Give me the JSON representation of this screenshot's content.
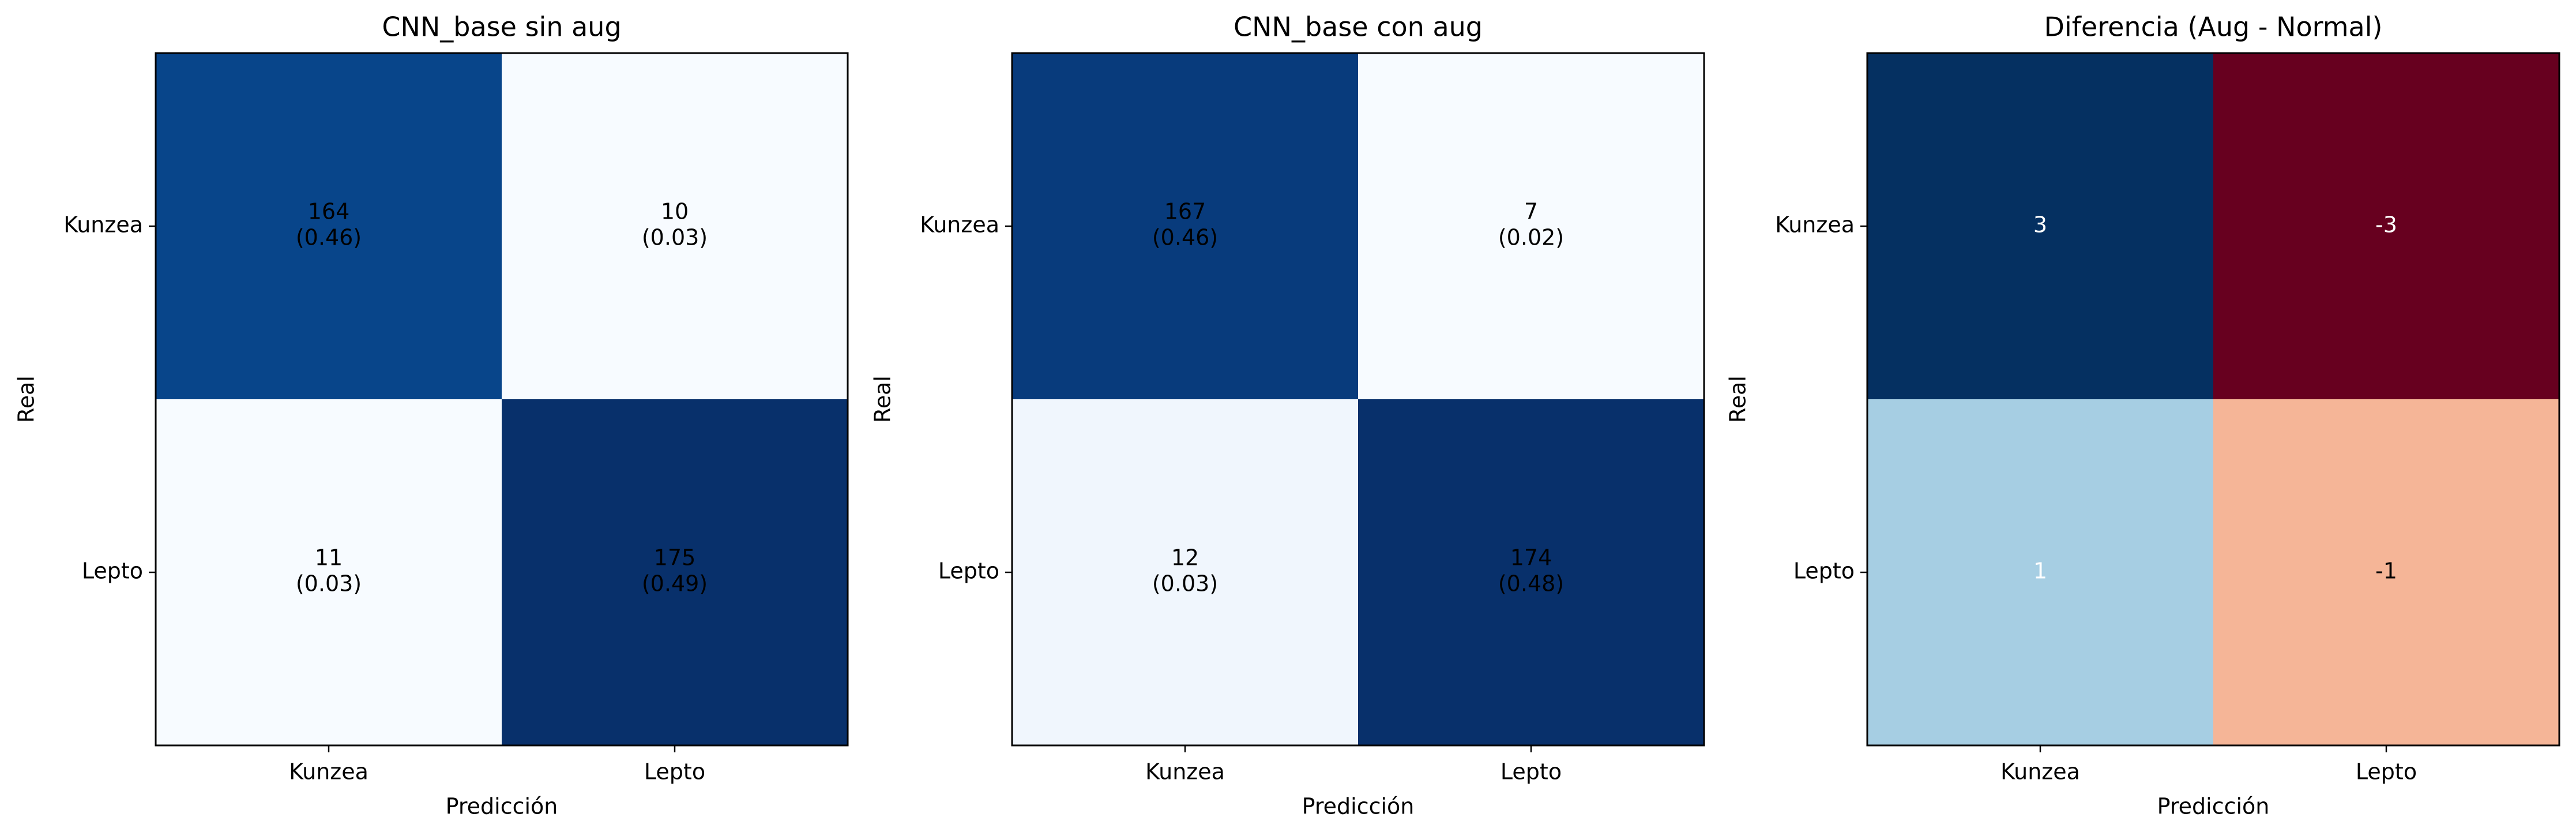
{
  "chart_data": [
    {
      "type": "heatmap",
      "title": "CNN_base sin aug",
      "xlabel": "Predicción",
      "ylabel": "Real",
      "x_categories": [
        "Kunzea",
        "Lepto"
      ],
      "y_categories": [
        "Kunzea",
        "Lepto"
      ],
      "colormap": "Blues",
      "counts": [
        [
          164,
          10
        ],
        [
          11,
          175
        ]
      ],
      "fractions": [
        "(0.46)",
        "(0.03)",
        "(0.03)",
        "(0.49)"
      ],
      "cell_colors": [
        [
          "#08458a",
          "#f7fbff"
        ],
        [
          "#f7fbff",
          "#08306b"
        ]
      ],
      "text_color": "#000000"
    },
    {
      "type": "heatmap",
      "title": "CNN_base con aug",
      "xlabel": "Predicción",
      "ylabel": "Real",
      "x_categories": [
        "Kunzea",
        "Lepto"
      ],
      "y_categories": [
        "Kunzea",
        "Lepto"
      ],
      "colormap": "Blues",
      "counts": [
        [
          167,
          7
        ],
        [
          12,
          174
        ]
      ],
      "fractions": [
        "(0.46)",
        "(0.02)",
        "(0.03)",
        "(0.48)"
      ],
      "cell_colors": [
        [
          "#083b7c",
          "#f7fbff"
        ],
        [
          "#f0f6fd",
          "#08306b"
        ]
      ],
      "text_color": "#000000"
    },
    {
      "type": "heatmap",
      "title": "Diferencia (Aug - Normal)",
      "xlabel": "Predicción",
      "ylabel": "Real",
      "x_categories": [
        "Kunzea",
        "Lepto"
      ],
      "y_categories": [
        "Kunzea",
        "Lepto"
      ],
      "colormap": "RdBu",
      "values": [
        [
          3,
          -3
        ],
        [
          1,
          -1
        ]
      ],
      "cell_colors": [
        [
          "#053061",
          "#67001f"
        ],
        [
          "#a6cee3",
          "#f5b597"
        ]
      ],
      "text_color": "#ffffff",
      "text_color_light_cells": "#000000"
    }
  ]
}
